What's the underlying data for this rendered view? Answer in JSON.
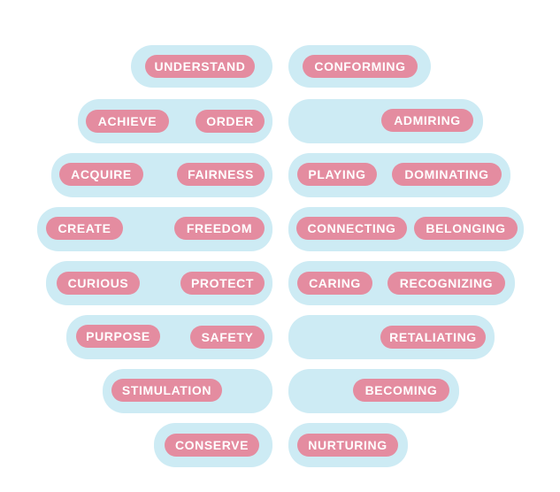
{
  "left_hemisphere": {
    "labels": [
      "UNDERSTAND",
      "ACHIEVE",
      "ORDER",
      "ACQUIRE",
      "FAIRNESS",
      "CREATE",
      "FREEDOM",
      "CURIOUS",
      "PROTECT",
      "PURPOSE",
      "SAFETY",
      "STIMULATION",
      "CONSERVE"
    ]
  },
  "right_hemisphere": {
    "labels": [
      "CONFORMING",
      "ADMIRING",
      "PLAYING",
      "DOMINATING",
      "CONNECTING",
      "BELONGING",
      "CARING",
      "RECOGNIZING",
      "RETALIATING",
      "BECOMING",
      "NURTURING"
    ]
  },
  "colors": {
    "lobe": "#cdebf4",
    "pill": "#e48ca0",
    "text": "#ffffff"
  }
}
